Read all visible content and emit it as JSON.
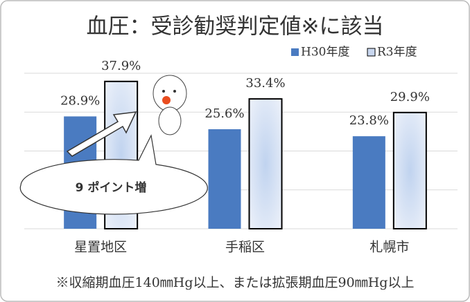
{
  "chart_data": {
    "type": "bar",
    "title": "血圧：受診勧奨判定値※に該当",
    "categories": [
      "星置地区",
      "手稲区",
      "札幌市"
    ],
    "series": [
      {
        "name": "H30年度",
        "color": "#4a7bc1",
        "values": [
          28.9,
          25.6,
          23.8
        ],
        "value_labels": [
          "28.9%",
          "25.6%",
          "23.8%"
        ]
      },
      {
        "name": "R3年度",
        "color": "#c9d7ef",
        "edgecolor": "#000000",
        "values": [
          37.9,
          33.4,
          29.9
        ],
        "value_labels": [
          "37.9%",
          "33.4%",
          "29.9%"
        ]
      }
    ],
    "ylim": [
      0,
      40
    ],
    "yticks": [
      0,
      10,
      20,
      30,
      40
    ],
    "grid": true,
    "legend": "top right",
    "annotation": "9 ポイント増",
    "footnote": "※収縮期血圧140㎜Hg以上、または拡張期血圧90㎜Hg以上"
  }
}
